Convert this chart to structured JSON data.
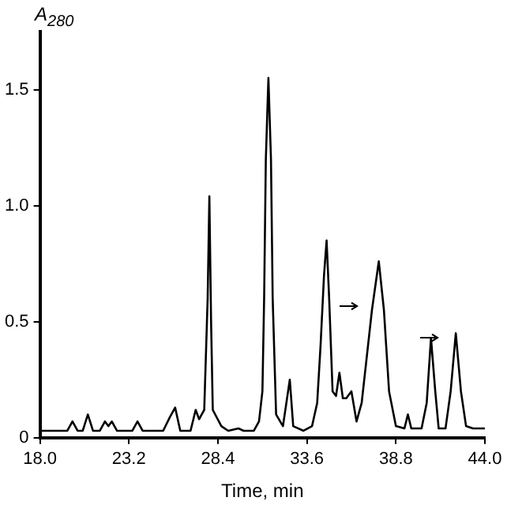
{
  "chart_data": {
    "type": "line",
    "ylabel": "A$_{280}$",
    "xlabel": "Time, min",
    "x": [
      18.0,
      19.6,
      19.9,
      20.2,
      20.5,
      20.8,
      21.1,
      21.5,
      21.8,
      22.0,
      22.2,
      22.5,
      23.4,
      23.7,
      24.0,
      25.2,
      25.6,
      25.9,
      26.2,
      26.8,
      27.1,
      27.3,
      27.6,
      27.8,
      27.9,
      28.0,
      28.1,
      28.6,
      29.0,
      29.6,
      29.9,
      30.5,
      30.8,
      31.0,
      31.1,
      31.2,
      31.35,
      31.5,
      31.6,
      31.8,
      32.2,
      32.6,
      32.8,
      33.4,
      33.9,
      34.2,
      34.4,
      34.6,
      34.75,
      34.9,
      35.1,
      35.3,
      35.5,
      35.7,
      35.9,
      36.2,
      36.5,
      36.8,
      37.1,
      37.4,
      37.8,
      38.1,
      38.4,
      38.8,
      39.3,
      39.5,
      39.7,
      40.3,
      40.6,
      40.85,
      41.1,
      41.3,
      41.7,
      42.0,
      42.3,
      42.6,
      42.9,
      43.3,
      44.0
    ],
    "series": [
      {
        "color": "#000000",
        "values": [
          0.03,
          0.03,
          0.07,
          0.03,
          0.03,
          0.1,
          0.03,
          0.03,
          0.07,
          0.05,
          0.07,
          0.03,
          0.03,
          0.07,
          0.03,
          0.03,
          0.09,
          0.13,
          0.03,
          0.03,
          0.12,
          0.08,
          0.12,
          0.6,
          1.04,
          0.5,
          0.12,
          0.05,
          0.03,
          0.04,
          0.03,
          0.03,
          0.07,
          0.2,
          0.6,
          1.2,
          1.55,
          1.2,
          0.6,
          0.1,
          0.05,
          0.25,
          0.05,
          0.03,
          0.05,
          0.15,
          0.4,
          0.7,
          0.85,
          0.6,
          0.2,
          0.18,
          0.28,
          0.17,
          0.17,
          0.2,
          0.07,
          0.15,
          0.35,
          0.55,
          0.76,
          0.55,
          0.2,
          0.05,
          0.04,
          0.1,
          0.04,
          0.04,
          0.15,
          0.43,
          0.2,
          0.04,
          0.04,
          0.2,
          0.45,
          0.2,
          0.05,
          0.04,
          0.04
        ]
      }
    ],
    "xlim": [
      18.0,
      44.0
    ],
    "xticks": [
      {
        "value": 18,
        "label": "18.0"
      },
      23.2,
      28.4,
      33.6,
      38.8,
      {
        "value": 44,
        "label": "44.0"
      }
    ],
    "ylim": [
      0,
      1.75
    ],
    "yticks": [
      0,
      0.5,
      {
        "value": 1,
        "label": "1.0"
      },
      1.5
    ],
    "grid": false,
    "legend": false,
    "marker": "none",
    "line_style": "solid"
  }
}
